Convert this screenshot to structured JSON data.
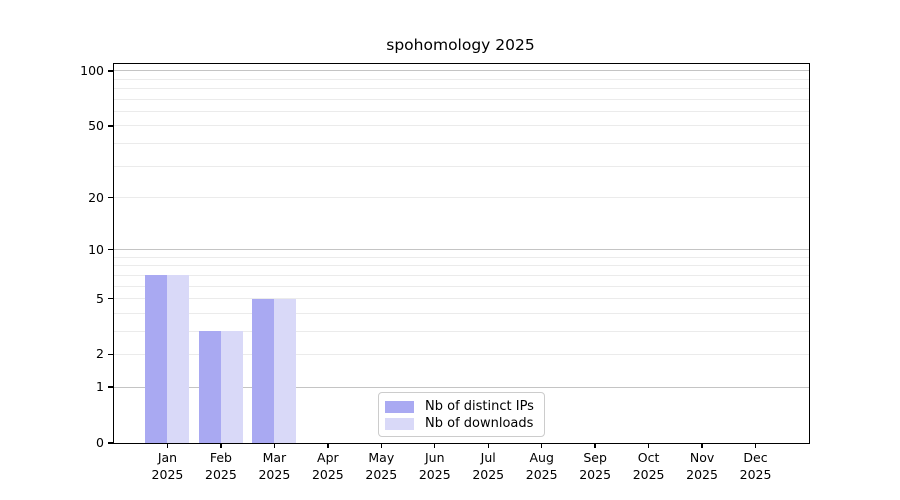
{
  "title": "spohomology 2025",
  "chart_data": {
    "type": "bar",
    "title": "spohomology 2025",
    "x_categories": [
      {
        "month": "Jan",
        "year": "2025"
      },
      {
        "month": "Feb",
        "year": "2025"
      },
      {
        "month": "Mar",
        "year": "2025"
      },
      {
        "month": "Apr",
        "year": "2025"
      },
      {
        "month": "May",
        "year": "2025"
      },
      {
        "month": "Jun",
        "year": "2025"
      },
      {
        "month": "Jul",
        "year": "2025"
      },
      {
        "month": "Aug",
        "year": "2025"
      },
      {
        "month": "Sep",
        "year": "2025"
      },
      {
        "month": "Oct",
        "year": "2025"
      },
      {
        "month": "Nov",
        "year": "2025"
      },
      {
        "month": "Dec",
        "year": "2025"
      }
    ],
    "series": [
      {
        "name": "Nb of distinct IPs",
        "color": "#a9a9f2",
        "values": [
          7,
          3,
          5,
          0,
          0,
          0,
          0,
          0,
          0,
          0,
          0,
          0
        ]
      },
      {
        "name": "Nb of downloads",
        "color": "#d9d9f8",
        "values": [
          7,
          3,
          5,
          0,
          0,
          0,
          0,
          0,
          0,
          0,
          0,
          0
        ]
      }
    ],
    "y_axis": {
      "scale": "log10(1+x)",
      "tick_values": [
        0,
        1,
        2,
        5,
        10,
        20,
        50,
        100
      ],
      "major_gridlines": [
        1,
        10,
        100
      ],
      "minor_gridlines": [
        2,
        3,
        4,
        5,
        6,
        7,
        8,
        9,
        20,
        30,
        40,
        50,
        60,
        70,
        80,
        90
      ],
      "max": 109
    },
    "legend": {
      "position": "lower center inside",
      "items": [
        {
          "label": "Nb of distinct IPs",
          "color": "#a9a9f2"
        },
        {
          "label": "Nb of downloads",
          "color": "#d9d9f8"
        }
      ]
    },
    "grid": "horizontal",
    "colors": {
      "background": "#ffffff",
      "spine": "#000000",
      "grid_major": "#c4c4c4",
      "grid_minor": "#ebebeb"
    }
  }
}
